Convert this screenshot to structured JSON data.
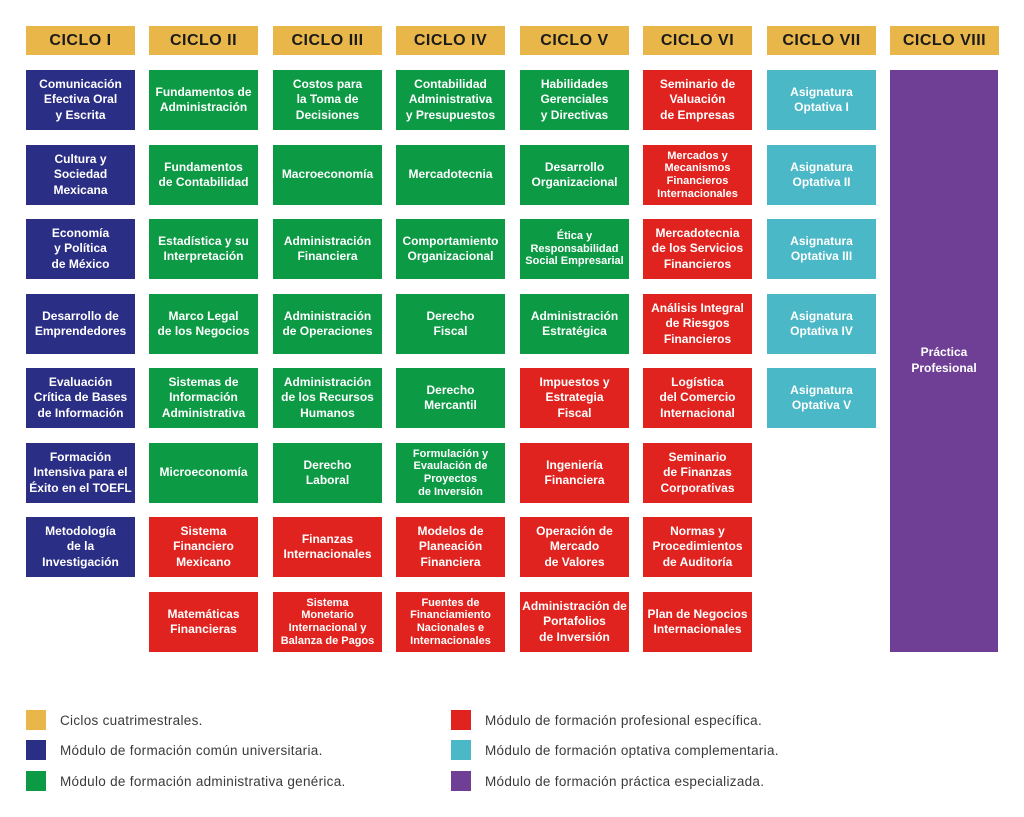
{
  "colors": {
    "cycle": "#e9b64a",
    "comun": "#2b2e85",
    "administrativa": "#0c9a45",
    "profesional": "#e0231f",
    "optativa": "#4ab8c6",
    "practica": "#6f3f95"
  },
  "headers": [
    "CICLO I",
    "CICLO II",
    "CICLO III",
    "CICLO IV",
    "CICLO V",
    "CICLO VI",
    "CICLO VII",
    "CICLO VIII"
  ],
  "ciclo1": [
    "Comunicación\nEfectiva Oral\ny Escrita",
    "Cultura y\nSociedad\nMexicana",
    "Economía\ny Política\nde México",
    "Desarrollo de\nEmprendedores",
    "Evaluación\nCrítica de Bases\nde Información",
    "Formación\nIntensiva para el\nÉxito en el TOEFL",
    "Metodología\nde la\nInvestigación"
  ],
  "ciclo2": [
    "Fundamentos de\nAdministración",
    "Fundamentos\nde Contabilidad",
    "Estadística y su\nInterpretación",
    "Marco Legal\nde los Negocios",
    "Sistemas de\nInformación\nAdministrativa",
    "Microeconomía",
    "Sistema\nFinanciero\nMexicano",
    "Matemáticas\nFinancieras"
  ],
  "ciclo3": [
    "Costos para\nla Toma de\nDecisiones",
    "Macroeconomía",
    "Administración\nFinanciera",
    "Administración\nde Operaciones",
    "Administración\nde los Recursos\nHumanos",
    "Derecho\nLaboral",
    "Finanzas\nInternacionales",
    "Sistema\nMonetario\nInternacional y\nBalanza de Pagos"
  ],
  "ciclo4": [
    "Contabilidad\nAdministrativa\ny Presupuestos",
    "Mercadotecnia",
    "Comportamiento\nOrganizacional",
    "Derecho\nFiscal",
    "Derecho\nMercantil",
    "Formulación y\nEvaulación de\nProyectos\nde Inversión",
    "Modelos de\nPlaneación\nFinanciera",
    "Fuentes de\nFinanciamiento\nNacionales e\nInternacionales"
  ],
  "ciclo5": [
    "Habilidades\nGerenciales\ny Directivas",
    "Desarrollo\nOrganizacional",
    "Ética y\nResponsabilidad\nSocial Empresarial",
    "Administración\nEstratégica",
    "Impuestos y\nEstrategia\nFiscal",
    "Ingeniería\nFinanciera",
    "Operación de\nMercado\nde Valores",
    "Administración de\nPortafolios\nde Inversión"
  ],
  "ciclo6": [
    "Seminario de\nValuación\nde Empresas",
    "Mercados y\nMecanismos\nFinancieros\nInternacionales",
    "Mercadotecnia\nde los Servicios\nFinancieros",
    "Análisis Integral\nde Riesgos\nFinancieros",
    "Logística\ndel Comercio\nInternacional",
    "Seminario\nde Finanzas\nCorporativas",
    "Normas y\nProcedimientos\nde Auditoría",
    "Plan de Negocios\nInternacionales"
  ],
  "ciclo7": [
    "Asignatura\nOptativa I",
    "Asignatura\nOptativa II",
    "Asignatura\nOptativa III",
    "Asignatura\nOptativa IV",
    "Asignatura\nOptativa V"
  ],
  "ciclo8": "Práctica\nProfesional",
  "legend": [
    "Ciclos cuatrimestrales.",
    "Módulo de formación común universitaria.",
    "Módulo de formación administrativa genérica.",
    "Módulo de formación profesional específica.",
    "Módulo de formación optativa complementaria.",
    "Módulo de formación práctica especializada."
  ]
}
